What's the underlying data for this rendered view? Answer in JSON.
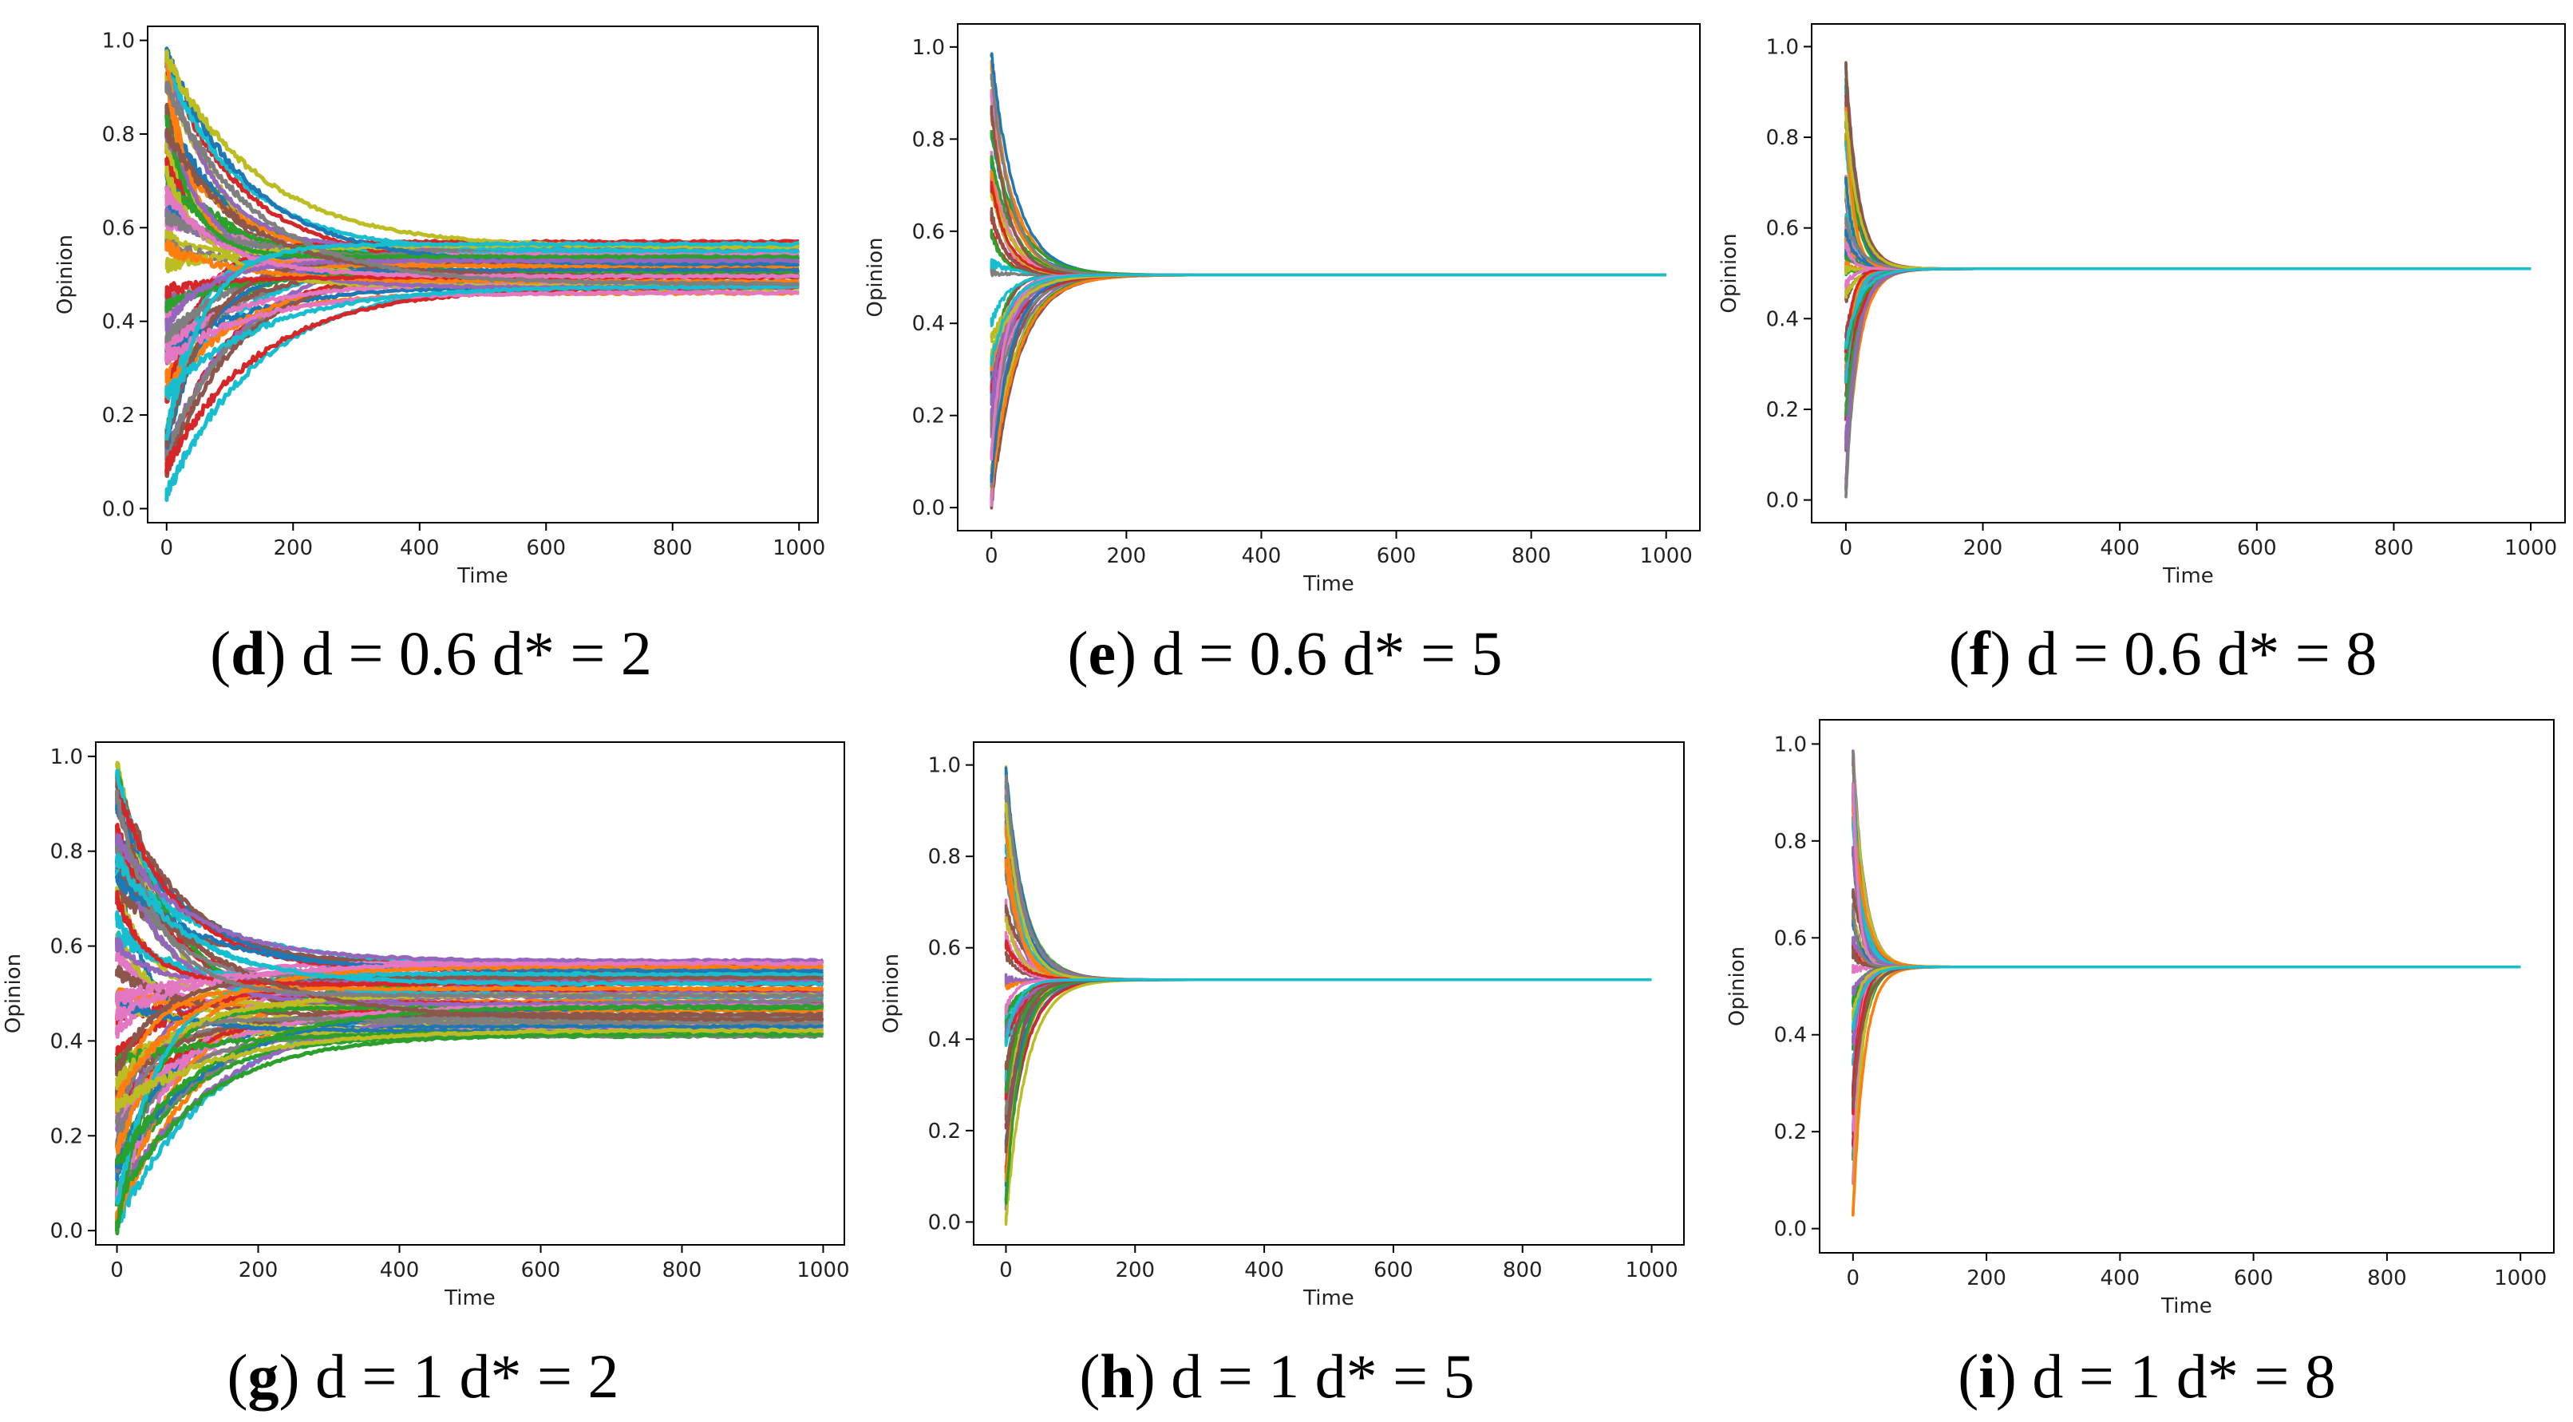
{
  "figure": {
    "panels": [
      {
        "id": "d",
        "caption_letter": "d",
        "caption_text": "d = 0.6 d* = 2",
        "chart_data": {
          "type": "line",
          "title": "",
          "xlabel": "Time",
          "ylabel": "Opinion",
          "xlim": [
            -30,
            1030
          ],
          "ylim": [
            -0.03,
            1.03
          ],
          "xticks": [
            0,
            200,
            400,
            600,
            800,
            1000
          ],
          "yticks": [
            0.0,
            0.2,
            0.4,
            0.6,
            0.8,
            1.0
          ],
          "consensus": false,
          "initial_spread": [
            0.0,
            1.0
          ],
          "final_band": [
            0.46,
            0.57
          ],
          "settle_time": 600,
          "n_series": 60
        }
      },
      {
        "id": "e",
        "caption_letter": "e",
        "caption_text": "d = 0.6 d* = 5",
        "chart_data": {
          "type": "line",
          "title": "",
          "xlabel": "Time",
          "ylabel": "Opinion",
          "xlim": [
            -50,
            1050
          ],
          "ylim": [
            -0.05,
            1.05
          ],
          "xticks": [
            0,
            200,
            400,
            600,
            800,
            1000
          ],
          "yticks": [
            0.0,
            0.2,
            0.4,
            0.6,
            0.8,
            1.0
          ],
          "consensus": true,
          "initial_spread": [
            0.0,
            1.0
          ],
          "final_band": [
            0.505,
            0.505
          ],
          "settle_time": 150,
          "n_series": 60
        }
      },
      {
        "id": "f",
        "caption_letter": "f",
        "caption_text": "d = 0.6 d* = 8",
        "chart_data": {
          "type": "line",
          "title": "",
          "xlabel": "Time",
          "ylabel": "Opinion",
          "xlim": [
            -50,
            1050
          ],
          "ylim": [
            -0.05,
            1.05
          ],
          "xticks": [
            0,
            200,
            400,
            600,
            800,
            1000
          ],
          "yticks": [
            0.0,
            0.2,
            0.4,
            0.6,
            0.8,
            1.0
          ],
          "consensus": true,
          "initial_spread": [
            0.0,
            1.0
          ],
          "final_band": [
            0.51,
            0.51
          ],
          "settle_time": 80,
          "n_series": 60
        }
      },
      {
        "id": "g",
        "caption_letter": "g",
        "caption_text": "d = 1 d* = 2",
        "chart_data": {
          "type": "line",
          "title": "",
          "xlabel": "Time",
          "ylabel": "Opinion",
          "xlim": [
            -30,
            1030
          ],
          "ylim": [
            -0.03,
            1.03
          ],
          "xticks": [
            0,
            200,
            400,
            600,
            800,
            1000
          ],
          "yticks": [
            0.0,
            0.2,
            0.4,
            0.6,
            0.8,
            1.0
          ],
          "consensus": false,
          "initial_spread": [
            0.0,
            1.0
          ],
          "final_band": [
            0.41,
            0.57
          ],
          "settle_time": 600,
          "n_series": 70
        }
      },
      {
        "id": "h",
        "caption_letter": "h",
        "caption_text": "d = 1 d* = 5",
        "chart_data": {
          "type": "line",
          "title": "",
          "xlabel": "Time",
          "ylabel": "Opinion",
          "xlim": [
            -50,
            1050
          ],
          "ylim": [
            -0.05,
            1.05
          ],
          "xticks": [
            0,
            200,
            400,
            600,
            800,
            1000
          ],
          "yticks": [
            0.0,
            0.2,
            0.4,
            0.6,
            0.8,
            1.0
          ],
          "consensus": true,
          "initial_spread": [
            0.0,
            1.0
          ],
          "final_band": [
            0.53,
            0.53
          ],
          "settle_time": 120,
          "n_series": 60
        }
      },
      {
        "id": "i",
        "caption_letter": "i",
        "caption_text": "d = 1 d* = 8",
        "chart_data": {
          "type": "line",
          "title": "",
          "xlabel": "Time",
          "ylabel": "Opinion",
          "xlim": [
            -50,
            1050
          ],
          "ylim": [
            -0.05,
            1.05
          ],
          "xticks": [
            0,
            200,
            400,
            600,
            800,
            1000
          ],
          "yticks": [
            0.0,
            0.2,
            0.4,
            0.6,
            0.8,
            1.0
          ],
          "consensus": true,
          "initial_spread": [
            0.0,
            1.0
          ],
          "final_band": [
            0.535,
            0.545
          ],
          "settle_time": 70,
          "n_series": 60
        }
      }
    ],
    "colors": [
      "#1f77b4",
      "#ff7f0e",
      "#2ca02c",
      "#d62728",
      "#9467bd",
      "#8c564b",
      "#e377c2",
      "#7f7f7f",
      "#bcbd22",
      "#17becf"
    ]
  }
}
